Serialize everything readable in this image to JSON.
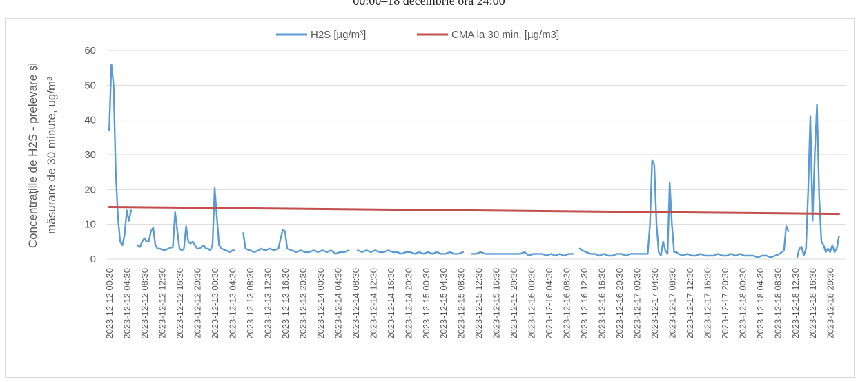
{
  "header": {
    "title": "00:00–18 decembrie ora 24:00"
  },
  "chart_data": {
    "type": "line",
    "title": "00:00–18 decembrie ora 24:00",
    "ylabel_line1": "Concentrațiile de H2S - prelevare și",
    "ylabel_line2": "măsurare de 30 minute, ug/m³",
    "xlabel": "",
    "ylim": [
      0,
      60
    ],
    "yticks": [
      0,
      10,
      20,
      30,
      40,
      50,
      60
    ],
    "grid": "horizontal",
    "legend_position": "top",
    "x_tick_labels": [
      "2023-12-12 00:30",
      "2023-12-12 04:30",
      "2023-12-12 08:30",
      "2023-12-12 12:30",
      "2023-12-12 16:30",
      "2023-12-12 20:30",
      "2023-12-13 00:30",
      "2023-12-13 04:30",
      "2023-12-13 08:30",
      "2023-12-13 12:30",
      "2023-12-13 16:30",
      "2023-12-13 20:30",
      "2023-12-14 00:30",
      "2023-12-14 04:30",
      "2023-12-14 08:30",
      "2023-12-14 12:30",
      "2023-12-14 16:30",
      "2023-12-14 20:30",
      "2023-12-15 00:30",
      "2023-12-15 04:30",
      "2023-12-15 08:30",
      "2023-12-15 12:30",
      "2023-12-15 16:30",
      "2023-12-15 20:30",
      "2023-12-16 00:30",
      "2023-12-16 04:30",
      "2023-12-16 08:30",
      "2023-12-16 12:30",
      "2023-12-16 16:30",
      "2023-12-16 20:30",
      "2023-12-17 00:30",
      "2023-12-17 04:30",
      "2023-12-17 08:30",
      "2023-12-17 12:30",
      "2023-12-17 16:30",
      "2023-12-17 20:30",
      "2023-12-18 00:30",
      "2023-12-18 04:30",
      "2023-12-18 08:30",
      "2023-12-18 12:30",
      "2023-12-18 16:30",
      "2023-12-18 20:30"
    ],
    "series": [
      {
        "name": "H2S [µg/m³]",
        "color": "#5b9bd5",
        "points": [
          [
            "2023-12-12 00:30",
            37
          ],
          [
            "2023-12-12 01:00",
            56
          ],
          [
            "2023-12-12 01:30",
            50
          ],
          [
            "2023-12-12 02:00",
            25
          ],
          [
            "2023-12-12 02:30",
            12
          ],
          [
            "2023-12-12 03:00",
            5
          ],
          [
            "2023-12-12 03:30",
            4
          ],
          [
            "2023-12-12 04:00",
            7
          ],
          [
            "2023-12-12 04:30",
            14
          ],
          [
            "2023-12-12 05:00",
            11
          ],
          [
            "2023-12-12 05:30",
            14
          ],
          [
            "2023-12-12 07:00",
            4
          ],
          [
            "2023-12-12 07:30",
            3.5
          ],
          [
            "2023-12-12 08:00",
            5
          ],
          [
            "2023-12-12 08:30",
            6
          ],
          [
            "2023-12-12 09:00",
            5
          ],
          [
            "2023-12-12 09:30",
            5
          ],
          [
            "2023-12-12 10:00",
            8
          ],
          [
            "2023-12-12 10:30",
            9
          ],
          [
            "2023-12-12 11:00",
            4
          ],
          [
            "2023-12-12 11:30",
            3
          ],
          [
            "2023-12-12 12:00",
            3
          ],
          [
            "2023-12-12 13:00",
            2.5
          ],
          [
            "2023-12-12 14:00",
            3
          ],
          [
            "2023-12-12 15:00",
            3.5
          ],
          [
            "2023-12-12 15:30",
            13.5
          ],
          [
            "2023-12-12 16:00",
            8
          ],
          [
            "2023-12-12 16:30",
            3
          ],
          [
            "2023-12-12 17:00",
            2.5
          ],
          [
            "2023-12-12 17:30",
            3
          ],
          [
            "2023-12-12 18:00",
            9.5
          ],
          [
            "2023-12-12 18:30",
            5
          ],
          [
            "2023-12-12 19:00",
            4.5
          ],
          [
            "2023-12-12 19:30",
            5
          ],
          [
            "2023-12-12 20:00",
            4
          ],
          [
            "2023-12-12 20:30",
            3
          ],
          [
            "2023-12-12 21:00",
            3
          ],
          [
            "2023-12-12 21:30",
            3.5
          ],
          [
            "2023-12-12 22:00",
            4
          ],
          [
            "2023-12-12 22:30",
            3
          ],
          [
            "2023-12-12 23:00",
            3
          ],
          [
            "2023-12-12 23:30",
            2.5
          ],
          [
            "2023-12-13 00:00",
            4
          ],
          [
            "2023-12-13 00:30",
            20.5
          ],
          [
            "2023-12-13 01:00",
            12
          ],
          [
            "2023-12-13 01:30",
            4
          ],
          [
            "2023-12-13 02:00",
            3
          ],
          [
            "2023-12-13 03:00",
            2.5
          ],
          [
            "2023-12-13 04:00",
            2
          ],
          [
            "2023-12-13 04:30",
            2.5
          ],
          [
            "2023-12-13 05:00",
            2.5
          ],
          [
            "2023-12-13 07:00",
            7.5
          ],
          [
            "2023-12-13 07:30",
            3
          ],
          [
            "2023-12-13 08:30",
            2.5
          ],
          [
            "2023-12-13 09:30",
            2
          ],
          [
            "2023-12-13 10:30",
            2.5
          ],
          [
            "2023-12-13 11:00",
            3
          ],
          [
            "2023-12-13 12:00",
            2.5
          ],
          [
            "2023-12-13 13:00",
            3
          ],
          [
            "2023-12-13 14:00",
            2.5
          ],
          [
            "2023-12-13 15:00",
            3
          ],
          [
            "2023-12-13 15:30",
            6
          ],
          [
            "2023-12-13 16:00",
            8.5
          ],
          [
            "2023-12-13 16:30",
            8
          ],
          [
            "2023-12-13 17:00",
            3
          ],
          [
            "2023-12-13 18:00",
            2.5
          ],
          [
            "2023-12-13 19:00",
            2
          ],
          [
            "2023-12-13 20:00",
            2.5
          ],
          [
            "2023-12-13 21:00",
            2
          ],
          [
            "2023-12-13 22:00",
            2
          ],
          [
            "2023-12-13 23:00",
            2.5
          ],
          [
            "2023-12-14 00:00",
            2
          ],
          [
            "2023-12-14 01:00",
            2.5
          ],
          [
            "2023-12-14 02:00",
            2
          ],
          [
            "2023-12-14 03:00",
            2.5
          ],
          [
            "2023-12-14 04:00",
            1.5
          ],
          [
            "2023-12-14 05:00",
            2
          ],
          [
            "2023-12-14 06:00",
            2
          ],
          [
            "2023-12-14 07:00",
            2.5
          ],
          [
            "2023-12-14 09:00",
            2.5
          ],
          [
            "2023-12-14 10:00",
            2
          ],
          [
            "2023-12-14 11:00",
            2.5
          ],
          [
            "2023-12-14 12:00",
            2
          ],
          [
            "2023-12-14 13:00",
            2.5
          ],
          [
            "2023-12-14 14:00",
            2
          ],
          [
            "2023-12-14 15:00",
            2
          ],
          [
            "2023-12-14 16:00",
            2.5
          ],
          [
            "2023-12-14 17:00",
            2
          ],
          [
            "2023-12-14 18:00",
            2
          ],
          [
            "2023-12-14 19:00",
            1.5
          ],
          [
            "2023-12-14 20:00",
            2
          ],
          [
            "2023-12-14 21:00",
            2
          ],
          [
            "2023-12-14 22:00",
            1.5
          ],
          [
            "2023-12-14 23:00",
            2
          ],
          [
            "2023-12-15 00:00",
            1.5
          ],
          [
            "2023-12-15 01:00",
            2
          ],
          [
            "2023-12-15 02:00",
            1.5
          ],
          [
            "2023-12-15 03:00",
            2
          ],
          [
            "2023-12-15 04:00",
            1.5
          ],
          [
            "2023-12-15 05:00",
            1.5
          ],
          [
            "2023-12-15 06:00",
            2
          ],
          [
            "2023-12-15 07:00",
            1.5
          ],
          [
            "2023-12-15 08:00",
            1.5
          ],
          [
            "2023-12-15 09:00",
            2
          ],
          [
            "2023-12-15 11:00",
            1.5
          ],
          [
            "2023-12-15 12:00",
            1.5
          ],
          [
            "2023-12-15 13:00",
            2
          ],
          [
            "2023-12-15 14:00",
            1.5
          ],
          [
            "2023-12-15 15:00",
            1.5
          ],
          [
            "2023-12-15 16:00",
            1.5
          ],
          [
            "2023-12-15 17:00",
            1.5
          ],
          [
            "2023-12-15 18:00",
            1.5
          ],
          [
            "2023-12-15 19:00",
            1.5
          ],
          [
            "2023-12-15 20:00",
            1.5
          ],
          [
            "2023-12-15 21:00",
            1.5
          ],
          [
            "2023-12-15 22:00",
            1.5
          ],
          [
            "2023-12-15 23:00",
            2
          ],
          [
            "2023-12-16 00:00",
            1
          ],
          [
            "2023-12-16 01:00",
            1.5
          ],
          [
            "2023-12-16 02:00",
            1.5
          ],
          [
            "2023-12-16 03:00",
            1.5
          ],
          [
            "2023-12-16 04:00",
            1
          ],
          [
            "2023-12-16 05:00",
            1.5
          ],
          [
            "2023-12-16 06:00",
            1
          ],
          [
            "2023-12-16 07:00",
            1.5
          ],
          [
            "2023-12-16 08:00",
            1
          ],
          [
            "2023-12-16 09:00",
            1.5
          ],
          [
            "2023-12-16 10:00",
            1.5
          ],
          [
            "2023-12-16 11:30",
            3
          ],
          [
            "2023-12-16 12:00",
            2.5
          ],
          [
            "2023-12-16 13:00",
            2
          ],
          [
            "2023-12-16 14:00",
            1.5
          ],
          [
            "2023-12-16 15:00",
            1.5
          ],
          [
            "2023-12-16 16:00",
            1
          ],
          [
            "2023-12-16 17:00",
            1.5
          ],
          [
            "2023-12-16 18:00",
            1
          ],
          [
            "2023-12-16 19:00",
            1
          ],
          [
            "2023-12-16 20:00",
            1.5
          ],
          [
            "2023-12-16 21:00",
            1.5
          ],
          [
            "2023-12-16 22:00",
            1
          ],
          [
            "2023-12-16 23:00",
            1.5
          ],
          [
            "2023-12-17 00:00",
            1.5
          ],
          [
            "2023-12-17 01:00",
            1.5
          ],
          [
            "2023-12-17 02:00",
            1.5
          ],
          [
            "2023-12-17 03:00",
            1.5
          ],
          [
            "2023-12-17 03:30",
            10
          ],
          [
            "2023-12-17 04:00",
            28.5
          ],
          [
            "2023-12-17 04:30",
            27
          ],
          [
            "2023-12-17 05:00",
            10
          ],
          [
            "2023-12-17 05:30",
            2
          ],
          [
            "2023-12-17 06:00",
            1
          ],
          [
            "2023-12-17 06:30",
            5
          ],
          [
            "2023-12-17 07:00",
            2.5
          ],
          [
            "2023-12-17 07:30",
            1.5
          ],
          [
            "2023-12-17 08:00",
            22
          ],
          [
            "2023-12-17 08:30",
            10
          ],
          [
            "2023-12-17 09:00",
            2
          ],
          [
            "2023-12-17 09:30",
            2
          ],
          [
            "2023-12-17 10:00",
            1.5
          ],
          [
            "2023-12-17 11:00",
            1
          ],
          [
            "2023-12-17 12:00",
            1.5
          ],
          [
            "2023-12-17 13:00",
            1
          ],
          [
            "2023-12-17 14:00",
            1
          ],
          [
            "2023-12-17 15:00",
            1.5
          ],
          [
            "2023-12-17 16:00",
            1
          ],
          [
            "2023-12-17 17:00",
            1
          ],
          [
            "2023-12-17 18:00",
            1
          ],
          [
            "2023-12-17 19:00",
            1.5
          ],
          [
            "2023-12-17 20:00",
            1
          ],
          [
            "2023-12-17 21:00",
            1
          ],
          [
            "2023-12-17 22:00",
            1.5
          ],
          [
            "2023-12-17 23:00",
            1
          ],
          [
            "2023-12-18 00:00",
            1.5
          ],
          [
            "2023-12-18 01:00",
            1
          ],
          [
            "2023-12-18 02:00",
            1
          ],
          [
            "2023-12-18 03:00",
            1
          ],
          [
            "2023-12-18 04:00",
            0.5
          ],
          [
            "2023-12-18 05:00",
            1
          ],
          [
            "2023-12-18 06:00",
            1
          ],
          [
            "2023-12-18 07:00",
            0.5
          ],
          [
            "2023-12-18 08:00",
            1
          ],
          [
            "2023-12-18 09:00",
            1.5
          ],
          [
            "2023-12-18 10:00",
            2.5
          ],
          [
            "2023-12-18 10:30",
            9.5
          ],
          [
            "2023-12-18 11:00",
            8
          ],
          [
            "2023-12-18 13:00",
            0.5
          ],
          [
            "2023-12-18 13:30",
            3
          ],
          [
            "2023-12-18 14:00",
            3.5
          ],
          [
            "2023-12-18 14:30",
            1
          ],
          [
            "2023-12-18 15:00",
            3
          ],
          [
            "2023-12-18 15:30",
            20
          ],
          [
            "2023-12-18 16:00",
            41
          ],
          [
            "2023-12-18 16:30",
            11
          ],
          [
            "2023-12-18 17:00",
            30
          ],
          [
            "2023-12-18 17:30",
            44.5
          ],
          [
            "2023-12-18 18:00",
            18
          ],
          [
            "2023-12-18 18:30",
            5
          ],
          [
            "2023-12-18 19:00",
            4
          ],
          [
            "2023-12-18 19:30",
            2
          ],
          [
            "2023-12-18 20:00",
            3
          ],
          [
            "2023-12-18 20:30",
            2
          ],
          [
            "2023-12-18 21:00",
            4
          ],
          [
            "2023-12-18 21:30",
            2
          ],
          [
            "2023-12-18 22:00",
            3
          ],
          [
            "2023-12-18 22:30",
            6.5
          ]
        ]
      },
      {
        "name": "CMA la 30 min. [µg/m3]",
        "color": "#c0504d",
        "points": [
          [
            "2023-12-12 00:30",
            15
          ],
          [
            "2023-12-18 22:30",
            13
          ]
        ]
      }
    ]
  }
}
